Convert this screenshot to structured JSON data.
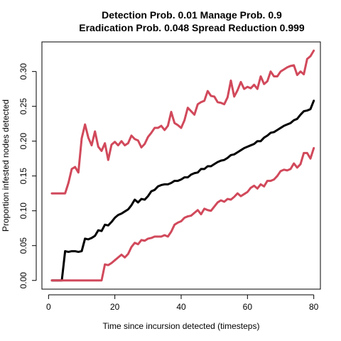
{
  "chart_data": {
    "type": "line",
    "title": "Detection Prob. 0.01 Manage Prob. 0.9",
    "subtitle": "Eradication Prob. 0.048 Spread Reduction 0.999",
    "xlabel": "Time since incursion detected (timesteps)",
    "ylabel": "Proportion infested nodes detected",
    "xlim": [
      -2,
      82
    ],
    "ylim": [
      -0.0125,
      0.3425
    ],
    "x_ticks": [
      0,
      20,
      40,
      60,
      80
    ],
    "y_ticks": [
      0.0,
      0.05,
      0.1,
      0.15,
      0.2,
      0.25,
      0.3
    ],
    "y_tick_labels": [
      "0.00",
      "0.05",
      "0.10",
      "0.15",
      "0.20",
      "0.25",
      "0.30"
    ],
    "grid": false,
    "x": [
      1,
      2,
      3,
      4,
      5,
      6,
      7,
      8,
      9,
      10,
      11,
      12,
      13,
      14,
      15,
      16,
      17,
      18,
      19,
      20,
      21,
      22,
      23,
      24,
      25,
      26,
      27,
      28,
      29,
      30,
      31,
      32,
      33,
      34,
      35,
      36,
      37,
      38,
      39,
      40,
      41,
      42,
      43,
      44,
      45,
      46,
      47,
      48,
      49,
      50,
      51,
      52,
      53,
      54,
      55,
      56,
      57,
      58,
      59,
      60,
      61,
      62,
      63,
      64,
      65,
      66,
      67,
      68,
      69,
      70,
      71,
      72,
      73,
      74,
      75,
      76,
      77,
      78,
      79,
      80
    ],
    "series": [
      {
        "color": "#000000",
        "values": [
          0.0,
          0.0,
          0.0,
          0.0,
          0.042,
          0.041,
          0.042,
          0.042,
          0.041,
          0.042,
          0.06,
          0.059,
          0.061,
          0.064,
          0.072,
          0.071,
          0.08,
          0.079,
          0.084,
          0.09,
          0.094,
          0.096,
          0.099,
          0.102,
          0.108,
          0.116,
          0.112,
          0.117,
          0.116,
          0.121,
          0.128,
          0.13,
          0.135,
          0.137,
          0.138,
          0.138,
          0.14,
          0.143,
          0.143,
          0.145,
          0.148,
          0.148,
          0.152,
          0.154,
          0.155,
          0.16,
          0.16,
          0.164,
          0.164,
          0.167,
          0.17,
          0.172,
          0.173,
          0.176,
          0.18,
          0.181,
          0.184,
          0.187,
          0.19,
          0.192,
          0.194,
          0.196,
          0.2,
          0.2,
          0.205,
          0.208,
          0.212,
          0.213,
          0.216,
          0.219,
          0.222,
          0.224,
          0.226,
          0.23,
          0.232,
          0.238,
          0.243,
          0.244,
          0.246,
          0.258
        ]
      },
      {
        "color": "#D1495B",
        "values": [
          0.125,
          0.125,
          0.125,
          0.125,
          0.125,
          0.14,
          0.16,
          0.163,
          0.155,
          0.204,
          0.224,
          0.205,
          0.194,
          0.214,
          0.192,
          0.186,
          0.197,
          0.173,
          0.195,
          0.199,
          0.194,
          0.2,
          0.194,
          0.197,
          0.208,
          0.203,
          0.201,
          0.191,
          0.196,
          0.206,
          0.212,
          0.219,
          0.219,
          0.222,
          0.216,
          0.222,
          0.242,
          0.226,
          0.223,
          0.219,
          0.23,
          0.248,
          0.243,
          0.238,
          0.253,
          0.256,
          0.258,
          0.272,
          0.265,
          0.264,
          0.256,
          0.255,
          0.253,
          0.263,
          0.287,
          0.264,
          0.273,
          0.285,
          0.275,
          0.278,
          0.276,
          0.281,
          0.275,
          0.293,
          0.282,
          0.286,
          0.3,
          0.293,
          0.293,
          0.3,
          0.303,
          0.306,
          0.308,
          0.309,
          0.295,
          0.3,
          0.296,
          0.318,
          0.322,
          0.33
        ]
      },
      {
        "color": "#D1495B",
        "values": [
          0.0,
          0.0,
          0.0,
          0.0,
          0.0,
          0.0,
          0.0,
          0.0,
          0.0,
          0.0,
          0.0,
          0.0,
          0.0,
          0.0,
          0.0,
          0.0,
          0.023,
          0.022,
          0.025,
          0.029,
          0.033,
          0.037,
          0.033,
          0.038,
          0.048,
          0.054,
          0.052,
          0.058,
          0.057,
          0.06,
          0.061,
          0.063,
          0.063,
          0.063,
          0.065,
          0.063,
          0.07,
          0.08,
          0.083,
          0.085,
          0.09,
          0.092,
          0.093,
          0.097,
          0.101,
          0.095,
          0.103,
          0.101,
          0.1,
          0.106,
          0.112,
          0.115,
          0.113,
          0.117,
          0.116,
          0.12,
          0.125,
          0.121,
          0.124,
          0.127,
          0.133,
          0.136,
          0.132,
          0.138,
          0.135,
          0.143,
          0.143,
          0.145,
          0.15,
          0.157,
          0.159,
          0.158,
          0.16,
          0.168,
          0.162,
          0.167,
          0.183,
          0.183,
          0.175,
          0.19
        ]
      }
    ]
  }
}
